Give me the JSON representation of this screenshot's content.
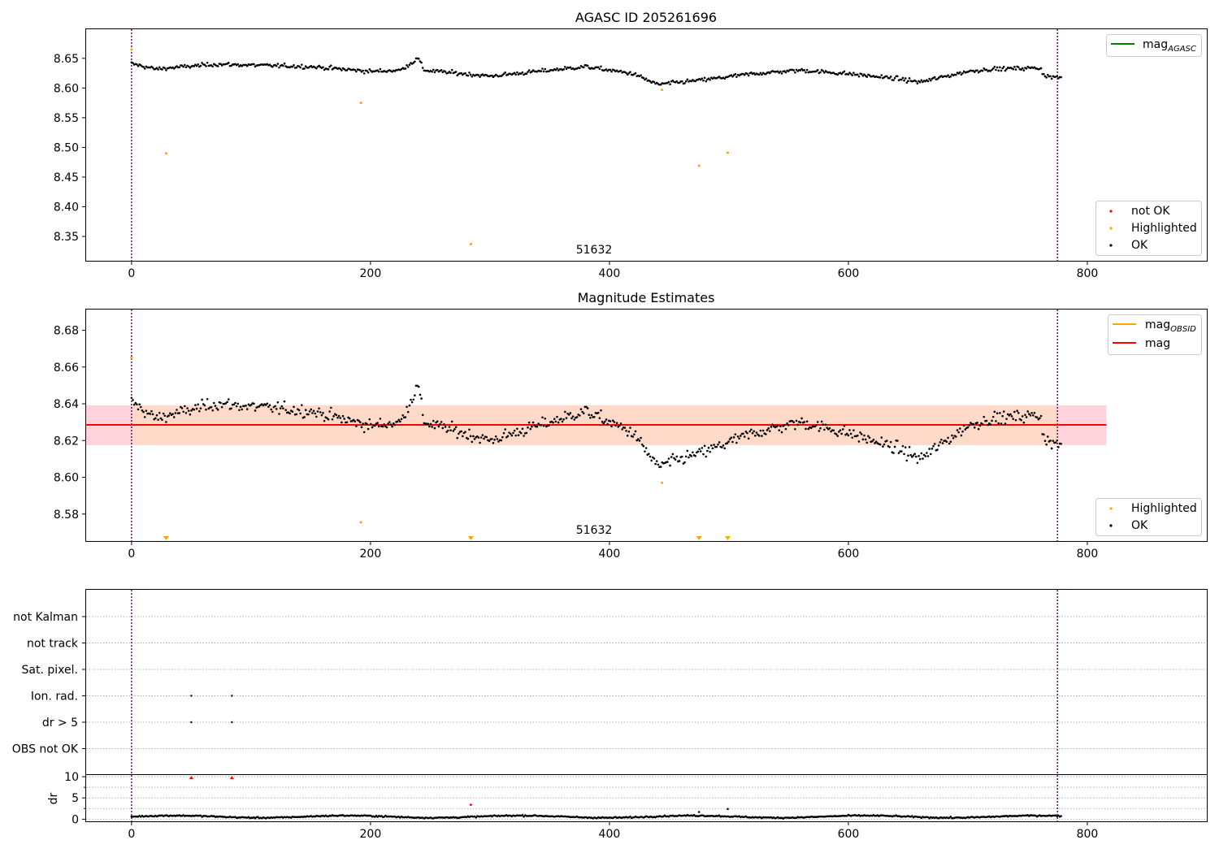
{
  "colors": {
    "ok": "#000000",
    "highlighted": "#ffa500",
    "not_ok": "#ff0000",
    "mag_agasc_line": "#008000",
    "mag_obsid_line": "#ffa500",
    "mag_line": "#ff0000",
    "band_outer": "#ffd2dc",
    "band_inner": "#ffdac8",
    "obs_boundary": "#800080",
    "grid": "#b0b0b0"
  },
  "chart_data": [
    {
      "type": "scatter",
      "title": "AGASC ID 205261696",
      "xlim": [
        -38,
        900
      ],
      "ylim": [
        8.309,
        8.699
      ],
      "xticks": [
        0,
        200,
        400,
        600,
        800
      ],
      "yticks": [
        8.35,
        8.4,
        8.45,
        8.5,
        8.55,
        8.6,
        8.65
      ],
      "yticklabels": [
        "8.35",
        "8.40",
        "8.45",
        "8.50",
        "8.55",
        "8.60",
        "8.65"
      ],
      "obs_boundaries": [
        0,
        775
      ],
      "obs_label": "51632",
      "line_legend": {
        "main": "mag",
        "sub": "AGASC"
      },
      "point_legend": [
        "not OK",
        "Highlighted",
        "OK"
      ],
      "legend_line": "top-right",
      "legend_points": "bottom-right",
      "ok_series": {
        "x_start": 0,
        "x_end": 778,
        "count": 700,
        "segments": [
          [
            0,
            8.641
          ],
          [
            20,
            8.632
          ],
          [
            70,
            8.64
          ],
          [
            150,
            8.636
          ],
          [
            200,
            8.628
          ],
          [
            225,
            8.63
          ],
          [
            240,
            8.65
          ],
          [
            245,
            8.63
          ],
          [
            300,
            8.62
          ],
          [
            330,
            8.626
          ],
          [
            380,
            8.636
          ],
          [
            420,
            8.624
          ],
          [
            440,
            8.606
          ],
          [
            480,
            8.614
          ],
          [
            520,
            8.624
          ],
          [
            560,
            8.63
          ],
          [
            600,
            8.624
          ],
          [
            640,
            8.616
          ],
          [
            660,
            8.61
          ],
          [
            700,
            8.628
          ],
          [
            720,
            8.632
          ],
          [
            760,
            8.634
          ],
          [
            765,
            8.62
          ],
          [
            778,
            8.617
          ]
        ],
        "noise": 0.006
      },
      "highlighted": [
        [
          0,
          8.665
        ],
        [
          29,
          8.49
        ],
        [
          192,
          8.575
        ],
        [
          284,
          8.337
        ],
        [
          444,
          8.597
        ],
        [
          475,
          8.469
        ],
        [
          499,
          8.491
        ]
      ],
      "not_ok": []
    },
    {
      "type": "scatter",
      "title": "Magnitude Estimates",
      "xlim": [
        -38,
        900
      ],
      "ylim": [
        8.5653,
        8.6913
      ],
      "xticks": [
        0,
        200,
        400,
        600,
        800
      ],
      "yticks": [
        8.58,
        8.6,
        8.62,
        8.64,
        8.66,
        8.68
      ],
      "yticklabels": [
        "8.58",
        "8.60",
        "8.62",
        "8.64",
        "8.66",
        "8.68"
      ],
      "obs_boundaries": [
        0,
        775
      ],
      "obs_label": "51632",
      "mag_value": 8.6285,
      "mag_band": [
        8.6175,
        8.6392
      ],
      "band_x": [
        -38,
        816
      ],
      "line_legend": [
        {
          "main": "mag",
          "sub": "OBSID",
          "color": "#ffa500"
        },
        {
          "main": "mag",
          "sub": "",
          "color": "#ff0000"
        }
      ],
      "point_legend": [
        "Highlighted",
        "OK"
      ],
      "legend_line": "top-right",
      "legend_points": "bottom-right",
      "highlighted": [
        [
          0,
          8.665
        ],
        [
          192,
          8.5755
        ],
        [
          444,
          8.597
        ]
      ],
      "highlighted_below_axis_x": [
        29,
        284,
        475,
        499
      ]
    },
    {
      "type": "scatter",
      "title": "",
      "xlim": [
        -38,
        900
      ],
      "flag_categories": [
        "not Kalman",
        "not track",
        "Sat. pixel.",
        "Ion. rad.",
        "dr > 5",
        "OBS not OK"
      ],
      "flag_points": [
        {
          "category": "Ion. rad.",
          "x": [
            50,
            84
          ]
        },
        {
          "category": "dr > 5",
          "x": [
            50,
            84
          ]
        }
      ],
      "obs_boundaries": [
        0,
        775
      ]
    },
    {
      "type": "scatter",
      "title": "",
      "xlim": [
        -38,
        900
      ],
      "ylim": [
        -0.5,
        10.4
      ],
      "ylabel": "dr",
      "xticks": [
        0,
        200,
        400,
        600,
        800
      ],
      "yticks": [
        0,
        5,
        10
      ],
      "yticklabels": [
        "0",
        "5",
        "10"
      ],
      "obs_boundaries": [
        0,
        775
      ],
      "ok_series": {
        "x_start": 0,
        "x_end": 778,
        "count": 700,
        "mean": 0.6,
        "noise": 0.25
      },
      "extra_ok": [
        [
          475,
          1.7
        ],
        [
          499,
          2.4
        ]
      ],
      "not_ok": [
        [
          284,
          3.4
        ]
      ],
      "clipped_not_ok_x": [
        50,
        84
      ]
    }
  ]
}
